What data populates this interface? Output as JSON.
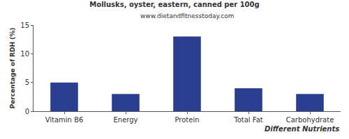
{
  "chart_data": {
    "type": "bar",
    "title": "Mollusks, oyster, eastern, canned per 100g",
    "subtitle": "www.dietandfitnesstoday.com",
    "x_label": "Different Nutrients",
    "y_label": "Percentage of RDH (%)",
    "categories": [
      "Vitamin B6",
      "Energy",
      "Protein",
      "Total Fat",
      "Carbohydrate"
    ],
    "values": [
      5,
      3,
      13,
      4,
      3
    ],
    "color": "#2a3f8f",
    "ylim": [
      0,
      15
    ],
    "yticks": [
      0,
      5,
      10,
      15
    ],
    "grid": false
  }
}
